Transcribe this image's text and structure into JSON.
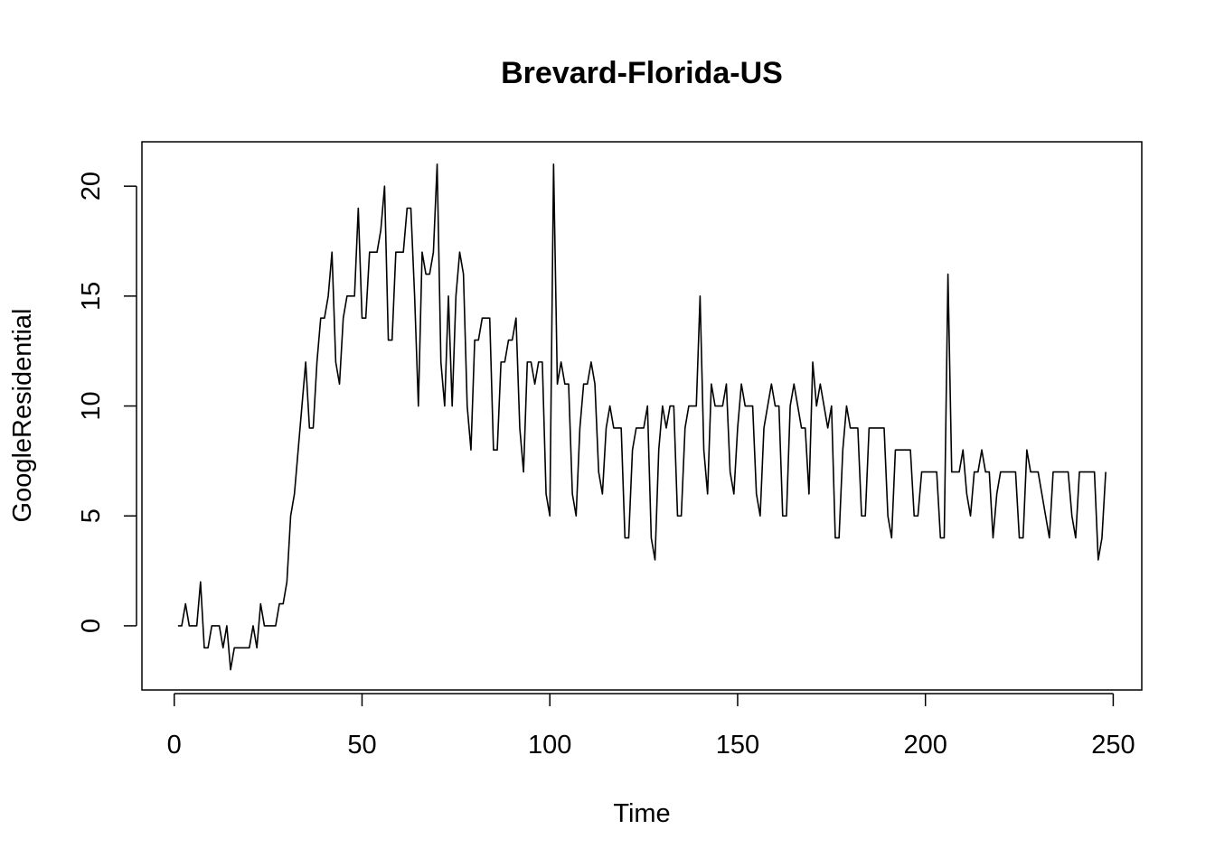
{
  "chart_data": {
    "type": "line",
    "title": "Brevard-Florida-US",
    "xlabel": "Time",
    "ylabel": "GoogleResidential",
    "xlim": [
      -8.6,
      257.6
    ],
    "ylim": [
      -2.92,
      22.02
    ],
    "x_ticks": [
      0,
      50,
      100,
      150,
      200,
      250
    ],
    "y_ticks": [
      0,
      5,
      10,
      15,
      20
    ],
    "grid": false,
    "legend": "none",
    "line_color": "#000000",
    "series": [
      {
        "x_start": 1,
        "x_step": 1,
        "values": [
          0,
          0,
          1,
          0,
          0,
          0,
          2,
          -1,
          -1,
          0,
          0,
          0,
          -1,
          0,
          -2,
          -1,
          -1,
          -1,
          -1,
          -1,
          0,
          -1,
          1,
          0,
          0,
          0,
          0,
          1,
          1,
          2,
          5,
          6,
          8,
          10,
          12,
          9,
          9,
          12,
          14,
          14,
          15,
          17,
          12,
          11,
          14,
          15,
          15,
          15,
          19,
          14,
          14,
          17,
          17,
          17,
          18,
          20,
          13,
          13,
          17,
          17,
          17,
          19,
          19,
          15,
          10,
          17,
          16,
          16,
          17,
          21,
          12,
          10,
          15,
          10,
          15,
          17,
          16,
          10,
          8,
          13,
          13,
          14,
          14,
          14,
          8,
          8,
          12,
          12,
          13,
          13,
          14,
          9,
          7,
          12,
          12,
          11,
          12,
          12,
          6,
          5,
          21,
          11,
          12,
          11,
          11,
          6,
          5,
          9,
          11,
          11,
          12,
          11,
          7,
          6,
          9,
          10,
          9,
          9,
          9,
          4,
          4,
          8,
          9,
          9,
          9,
          10,
          4,
          3,
          8,
          10,
          9,
          10,
          10,
          5,
          5,
          9,
          10,
          10,
          10,
          15,
          8,
          6,
          11,
          10,
          10,
          10,
          11,
          7,
          6,
          9,
          11,
          10,
          10,
          10,
          6,
          5,
          9,
          10,
          11,
          10,
          10,
          5,
          5,
          10,
          11,
          10,
          9,
          9,
          6,
          12,
          10,
          11,
          10,
          9,
          10,
          4,
          4,
          8,
          10,
          9,
          9,
          9,
          5,
          5,
          9,
          9,
          9,
          9,
          9,
          5,
          4,
          8,
          8,
          8,
          8,
          8,
          5,
          5,
          7,
          7,
          7,
          7,
          7,
          4,
          4,
          16,
          7,
          7,
          7,
          8,
          6,
          5,
          7,
          7,
          8,
          7,
          7,
          4,
          6,
          7,
          7,
          7,
          7,
          7,
          4,
          4,
          8,
          7,
          7,
          7,
          6,
          5,
          4,
          7,
          7,
          7,
          7,
          7,
          5,
          4,
          7,
          7,
          7,
          7,
          7,
          3,
          4,
          7
        ]
      }
    ]
  }
}
